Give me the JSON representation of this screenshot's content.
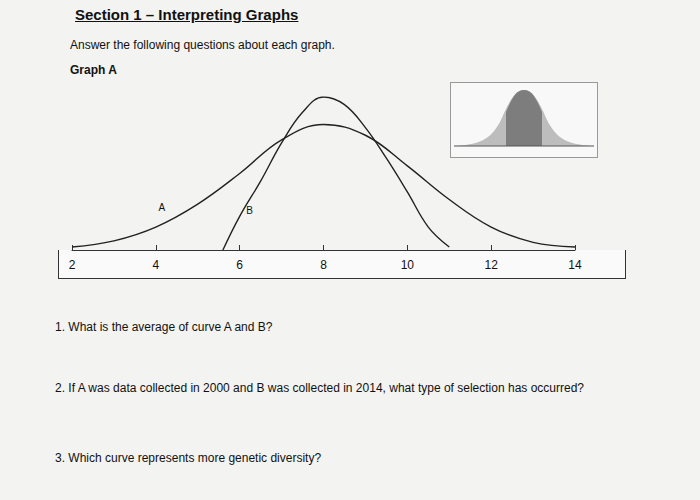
{
  "section_title": "Section 1 – Interpreting Graphs",
  "instruction": "Answer the following questions about each graph.",
  "graph_title": "Graph A",
  "chart_data": {
    "type": "line",
    "series": [
      {
        "name": "A",
        "color": "#222222",
        "x": [
          2,
          3,
          4,
          5,
          6,
          7,
          8,
          9,
          10,
          11,
          12,
          13,
          14
        ],
        "values": [
          0.02,
          0.06,
          0.15,
          0.3,
          0.5,
          0.72,
          0.82,
          0.75,
          0.55,
          0.33,
          0.15,
          0.05,
          0.02
        ]
      },
      {
        "name": "B",
        "color": "#222222",
        "x": [
          5.6,
          6,
          6.5,
          7,
          7.5,
          8,
          8.5,
          9,
          9.5,
          10,
          10.5,
          11
        ],
        "values": [
          0,
          0.22,
          0.45,
          0.7,
          0.9,
          1.0,
          0.95,
          0.8,
          0.6,
          0.38,
          0.15,
          0.02
        ]
      }
    ],
    "xlim": [
      2,
      14
    ],
    "xticks": [
      2,
      4,
      6,
      8,
      10,
      12,
      14
    ],
    "ylim": [
      0,
      1
    ],
    "tick_labels": "x",
    "grid": false
  },
  "questions": [
    "1. What is the average of curve A and B?",
    "2. If A was data collected in 2000 and B was collected in 2014, what type of selection has occurred?",
    "3. Which curve represents more genetic diversity?"
  ]
}
